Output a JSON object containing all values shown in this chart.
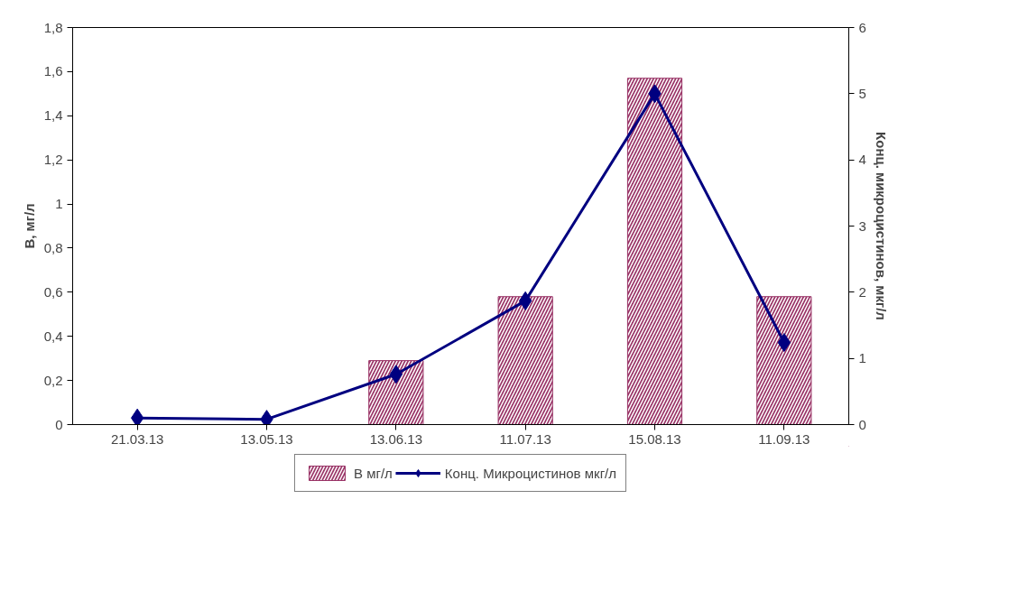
{
  "chart_data": {
    "type": "bar",
    "categories": [
      "21.03.13",
      "13.05.13",
      "13.06.13",
      "11.07.13",
      "15.08.13",
      "11.09.13"
    ],
    "series": [
      {
        "name": "В мг/л",
        "color": "#993366",
        "values": [
          null,
          null,
          0.29,
          0.58,
          1.57,
          0.58
        ]
      },
      {
        "name": "Конц. Микроцистинов мкг/л",
        "type": "line",
        "axis": "y2",
        "color": "#000080",
        "marker": "diamond",
        "values": [
          0.1,
          0.08,
          0.76,
          1.87,
          5.0,
          1.24
        ]
      }
    ],
    "ylabel": "В, мг/л",
    "y2label": "Конц. микроцистинов, мкг/л",
    "ylim": [
      0,
      1.8
    ],
    "yticks": [
      0,
      {
        "value": 0.2,
        "label": "0,2"
      },
      {
        "value": 0.4,
        "label": "0,4"
      },
      {
        "value": 0.6,
        "label": "0,6"
      },
      {
        "value": 0.8,
        "label": "0,8"
      },
      1,
      {
        "value": 1.2,
        "label": "1,2"
      },
      {
        "value": 1.4,
        "label": "1,4"
      },
      {
        "value": 1.6,
        "label": "1,6"
      },
      {
        "value": 1.8,
        "label": "1,8"
      }
    ],
    "y2lim": [
      0,
      6
    ],
    "y2ticks": [
      0,
      1,
      2,
      3,
      4,
      5,
      6
    ],
    "legend": "bottom",
    "grid": false
  }
}
